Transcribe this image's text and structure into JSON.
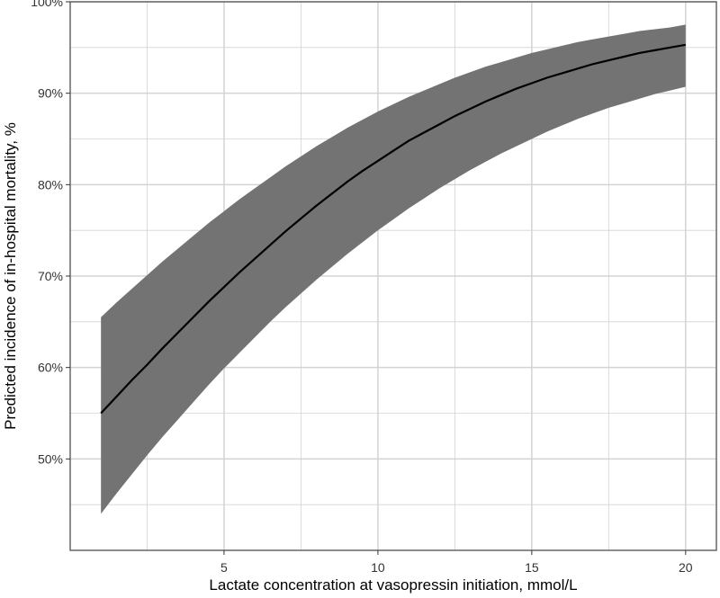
{
  "chart_data": {
    "type": "line",
    "title": "",
    "xlabel": "Lactate concentration at vasopressin initiation, mmol/L",
    "ylabel": "Predicted incidence of in-hospital mortality, %",
    "xlim": [
      0,
      21
    ],
    "ylim": [
      40,
      100
    ],
    "x_ticks": [
      5,
      10,
      15,
      20
    ],
    "x_tick_labels": [
      "5",
      "10",
      "15",
      "20"
    ],
    "y_ticks": [
      50,
      60,
      70,
      80,
      90,
      100
    ],
    "y_tick_labels": [
      "50%",
      "60%",
      "70%",
      "80%",
      "90%",
      "100%"
    ],
    "grid": true,
    "legend": "none",
    "colors": {
      "band": "#737373",
      "line": "#000000",
      "grid": "#d3d3d3",
      "axis": "#666666"
    },
    "series": [
      {
        "x": [
          1.0,
          1.5,
          2.0,
          2.5,
          3.0,
          3.5,
          4.0,
          4.5,
          5.0,
          5.5,
          6.0,
          6.5,
          7.0,
          7.5,
          8.0,
          8.5,
          9.0,
          9.5,
          10.0,
          10.5,
          11.0,
          11.5,
          12.0,
          12.5,
          13.0,
          13.5,
          14.0,
          14.5,
          15.0,
          15.5,
          16.0,
          16.5,
          17.0,
          17.5,
          18.0,
          18.5,
          19.0,
          19.5,
          20.0
        ],
        "y": [
          55.0,
          56.8,
          58.6,
          60.3,
          62.1,
          63.8,
          65.5,
          67.2,
          68.8,
          70.4,
          71.9,
          73.4,
          74.9,
          76.3,
          77.7,
          79.0,
          80.3,
          81.5,
          82.6,
          83.7,
          84.8,
          85.7,
          86.6,
          87.5,
          88.3,
          89.1,
          89.8,
          90.5,
          91.1,
          91.7,
          92.2,
          92.7,
          93.2,
          93.6,
          94.0,
          94.4,
          94.7,
          95.0,
          95.3
        ],
        "lower": [
          44.0,
          46.2,
          48.3,
          50.4,
          52.4,
          54.3,
          56.2,
          58.1,
          59.9,
          61.6,
          63.3,
          65.0,
          66.6,
          68.1,
          69.6,
          71.0,
          72.4,
          73.7,
          75.0,
          76.2,
          77.4,
          78.5,
          79.6,
          80.6,
          81.6,
          82.5,
          83.4,
          84.2,
          85.0,
          85.8,
          86.5,
          87.2,
          87.8,
          88.4,
          88.9,
          89.4,
          89.9,
          90.3,
          90.7
        ],
        "upper": [
          65.5,
          67.1,
          68.6,
          70.1,
          71.6,
          73.0,
          74.4,
          75.8,
          77.1,
          78.4,
          79.6,
          80.8,
          82.0,
          83.1,
          84.2,
          85.2,
          86.2,
          87.1,
          88.0,
          88.8,
          89.6,
          90.3,
          91.0,
          91.7,
          92.3,
          92.9,
          93.4,
          93.9,
          94.4,
          94.8,
          95.2,
          95.6,
          95.9,
          96.2,
          96.5,
          96.8,
          97.0,
          97.2,
          97.5
        ]
      }
    ]
  }
}
